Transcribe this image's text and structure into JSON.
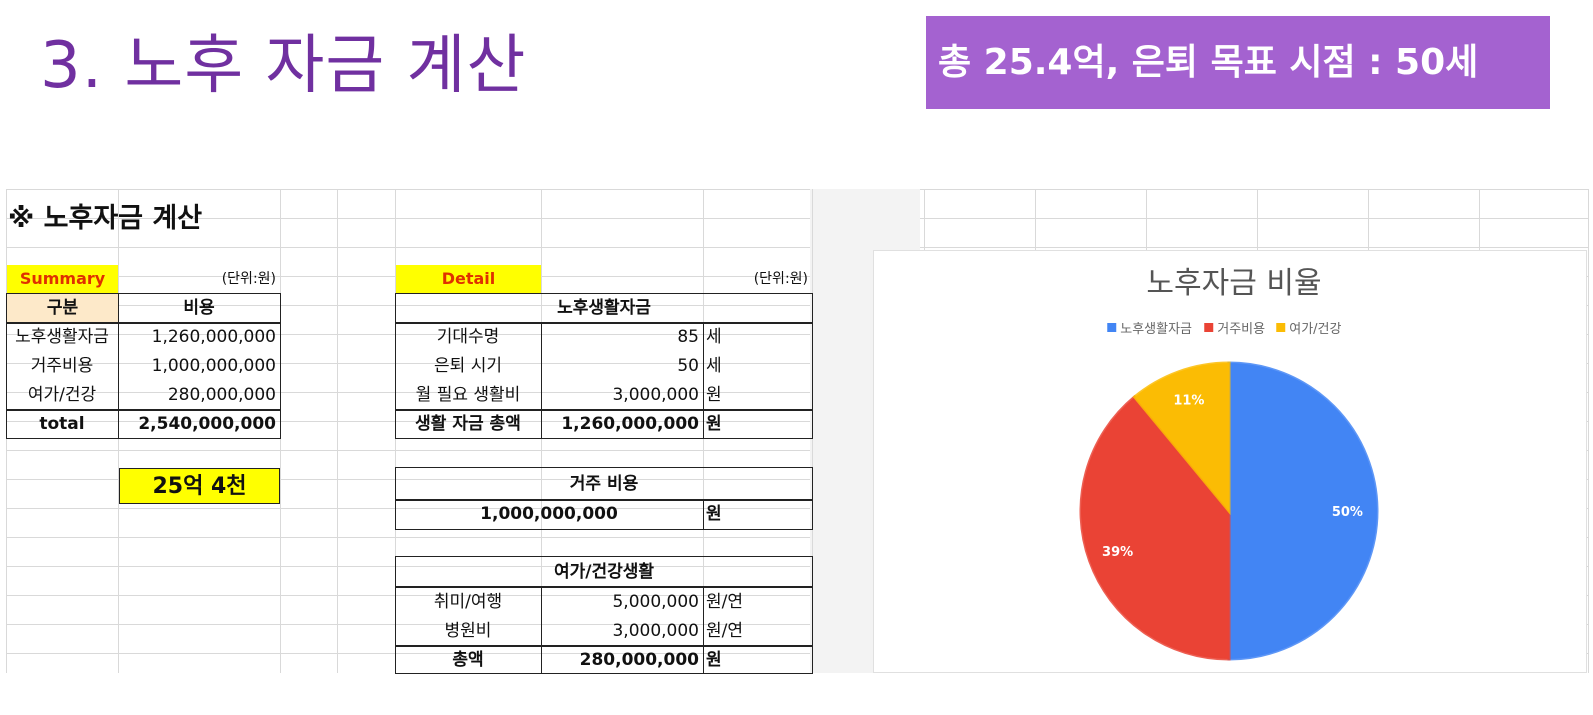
{
  "page": {
    "title": "3. 노후 자금 계산",
    "banner": "총 25.4억, 은퇴 목표 시점  : 50세"
  },
  "sheet": {
    "heading": "※ 노후자금 계산",
    "summary": {
      "label": "Summary",
      "unit": "(단위:원)",
      "header_category": "구분",
      "header_cost": "비용",
      "rows": [
        {
          "category": "노후생활자금",
          "cost": "1,260,000,000"
        },
        {
          "category": "거주비용",
          "cost": "1,000,000,000"
        },
        {
          "category": "여가/건강",
          "cost": "280,000,000"
        },
        {
          "category": "total",
          "cost": "2,540,000,000"
        }
      ],
      "highlight": "25억 4천"
    },
    "detail": {
      "label": "Detail",
      "unit": "(단위:원)",
      "living": {
        "title": "노후생활자금",
        "rows": [
          {
            "label": "기대수명",
            "value": "85",
            "unit": "세"
          },
          {
            "label": "은퇴 시기",
            "value": "50",
            "unit": "세"
          },
          {
            "label": "월 필요 생활비",
            "value": "3,000,000",
            "unit": "원"
          },
          {
            "label": "생활 자금 총액",
            "value": "1,260,000,000",
            "unit": "원"
          }
        ]
      },
      "housing": {
        "title": "거주 비용",
        "value": "1,000,000,000",
        "unit": "원"
      },
      "leisure": {
        "title": "여가/건강생활",
        "rows": [
          {
            "label": "취미/여행",
            "value": "5,000,000",
            "unit": "원/연"
          },
          {
            "label": "병원비",
            "value": "3,000,000",
            "unit": "원/연"
          },
          {
            "label": "총액",
            "value": "280,000,000",
            "unit": "원"
          }
        ]
      }
    }
  },
  "chart_data": {
    "type": "pie",
    "title": "노후자금 비율",
    "legend_position": "top",
    "categories": [
      "노후생활자금",
      "거주비용",
      "여가/건강"
    ],
    "values": [
      50,
      39,
      11
    ],
    "labels": [
      "50%",
      "39%",
      "11%"
    ],
    "colors": [
      "#4285f4",
      "#ea4335",
      "#fbbc04"
    ]
  }
}
